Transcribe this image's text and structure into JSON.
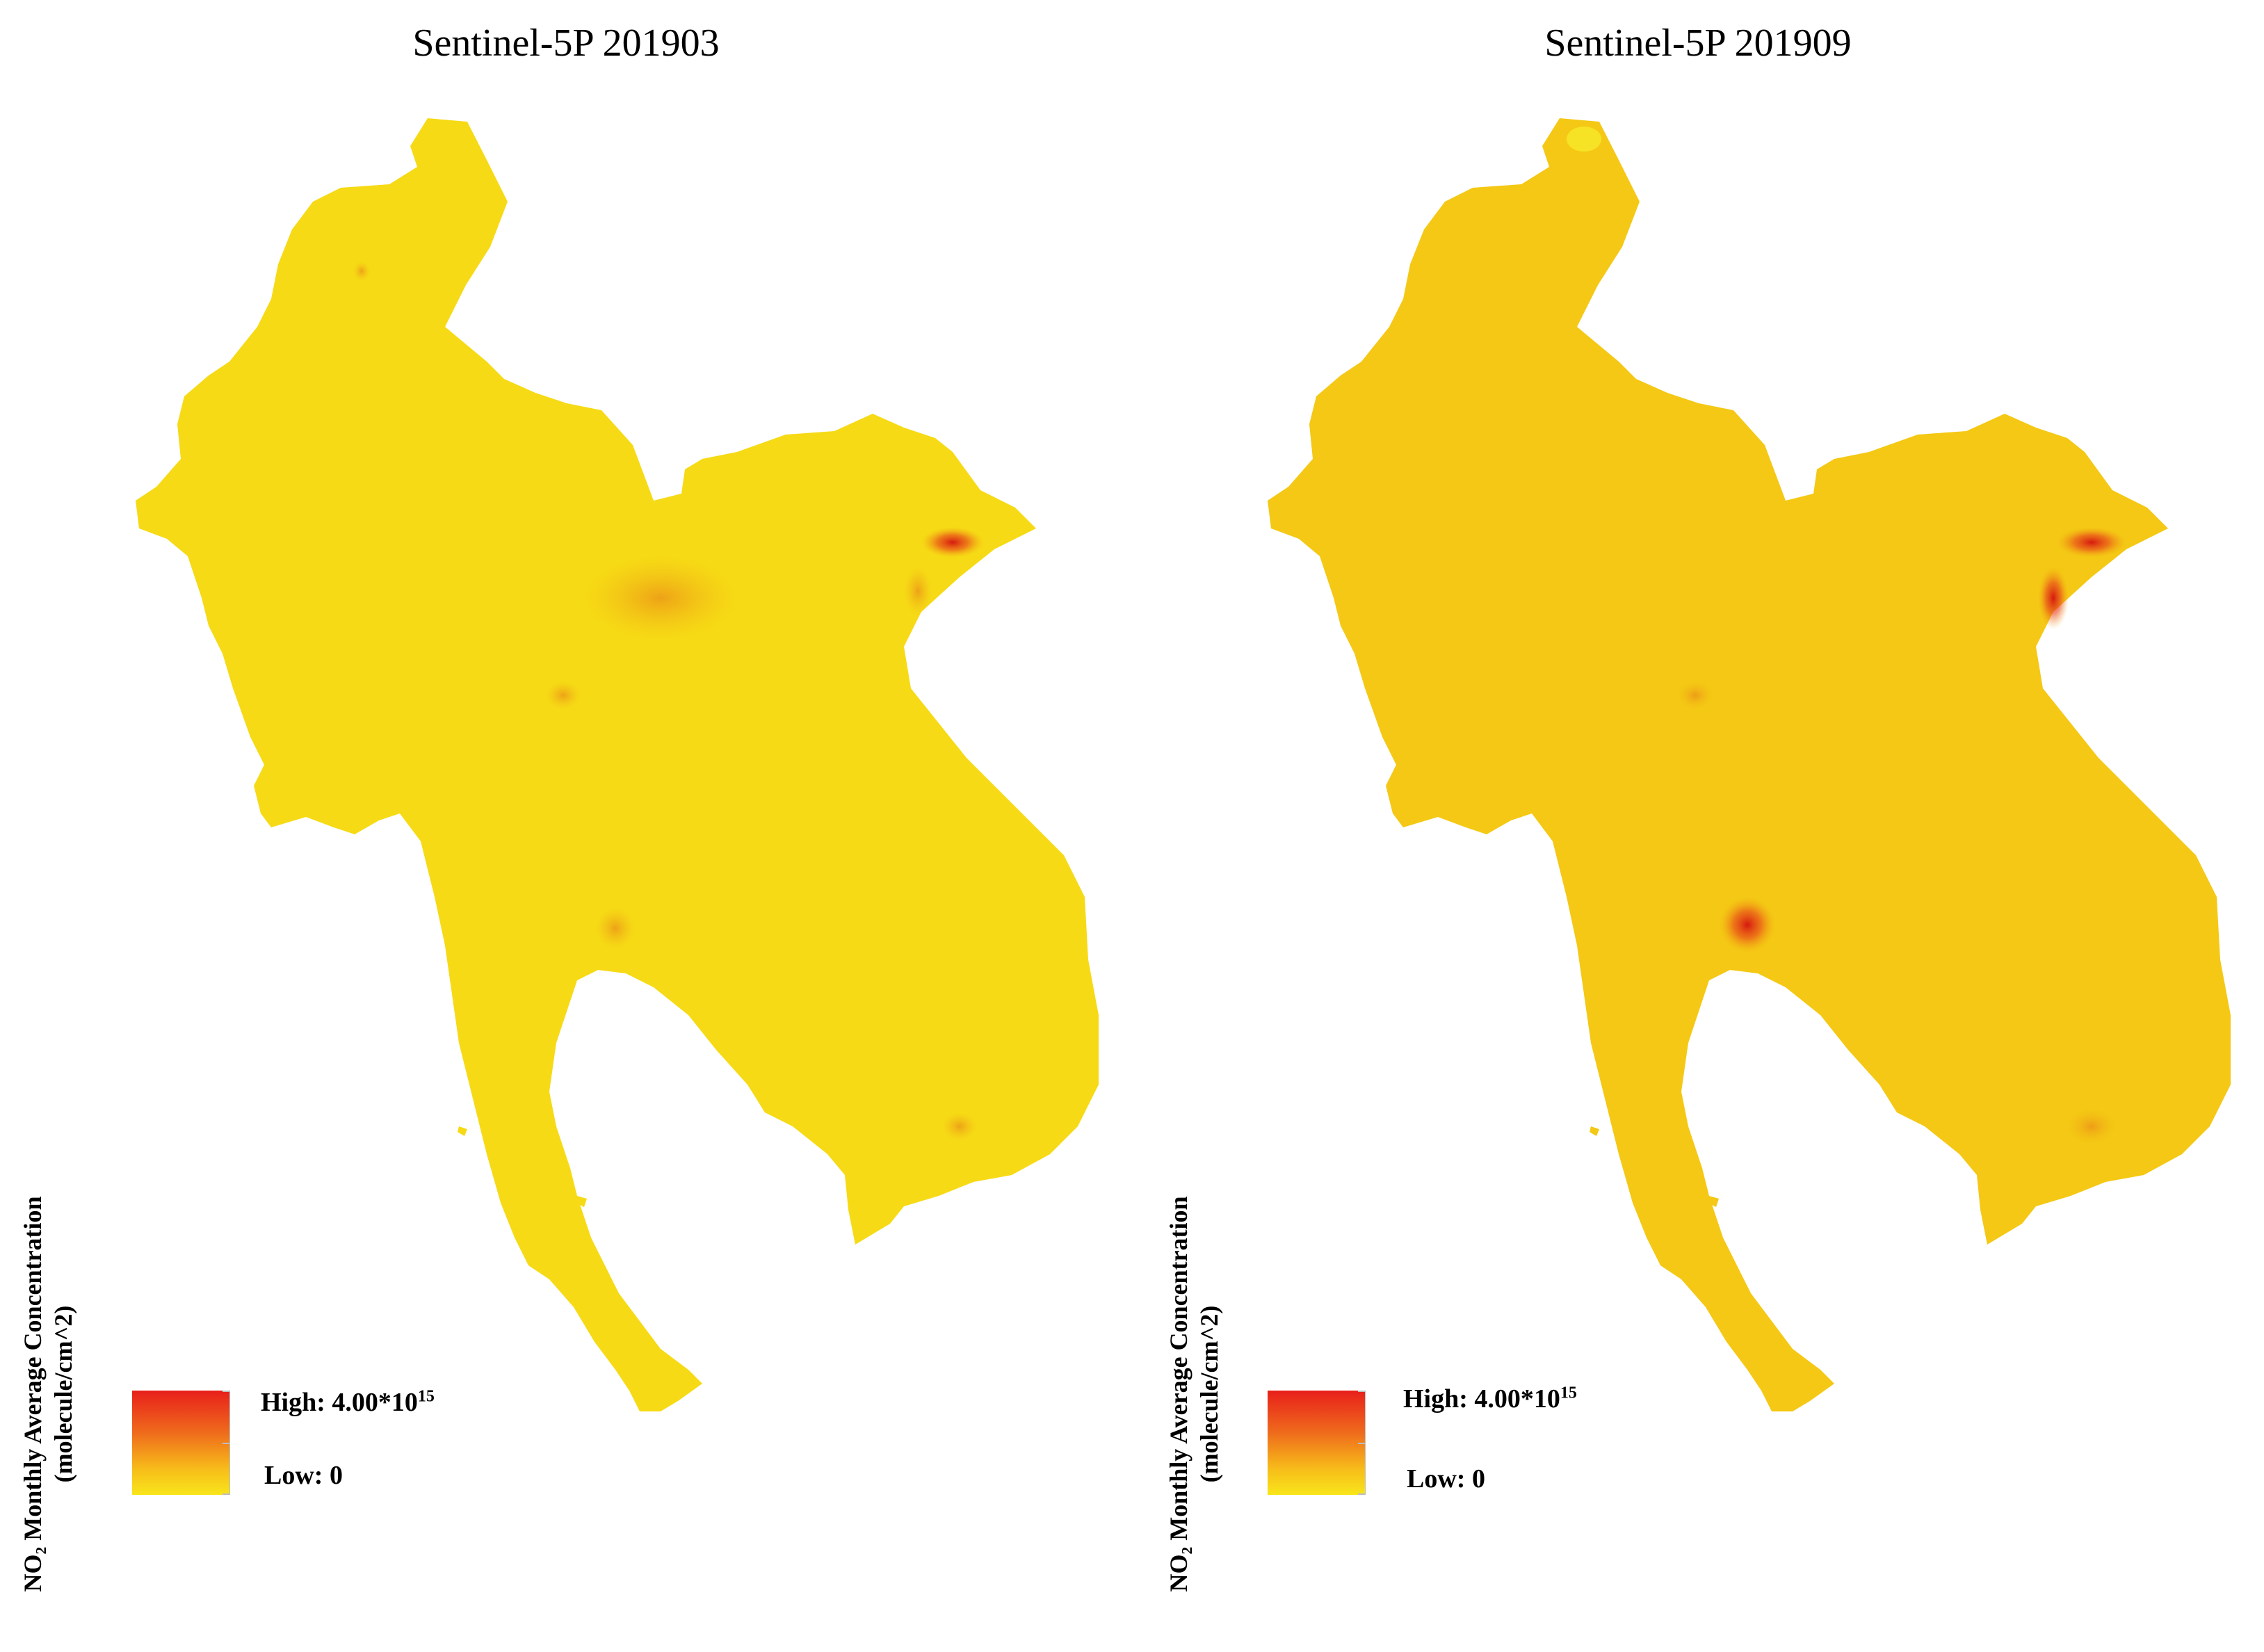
{
  "panels": [
    {
      "title": "Sentinel-5P 201903",
      "axis_label_line1": "NO₂ Monthly Average Concentration",
      "axis_label_line2": "(molecule/cm^2)",
      "legend": {
        "high_prefix": "High: 4.00*10",
        "high_exponent": "15",
        "low_label": "Low: 0",
        "color_high": "#e8201b",
        "color_low": "#f8e61a"
      },
      "base_fill": "#f6da15"
    },
    {
      "title": "Sentinel-5P 201909",
      "axis_label_line1": "NO₂ Monthly Average Concentration",
      "axis_label_line2": "(molecule/cm^2)",
      "legend": {
        "high_prefix": "High: 4.00*10",
        "high_exponent": "15",
        "low_label": "Low: 0",
        "color_high": "#e8201b",
        "color_low": "#f8e61a"
      },
      "base_fill": "#f4c814"
    }
  ]
}
